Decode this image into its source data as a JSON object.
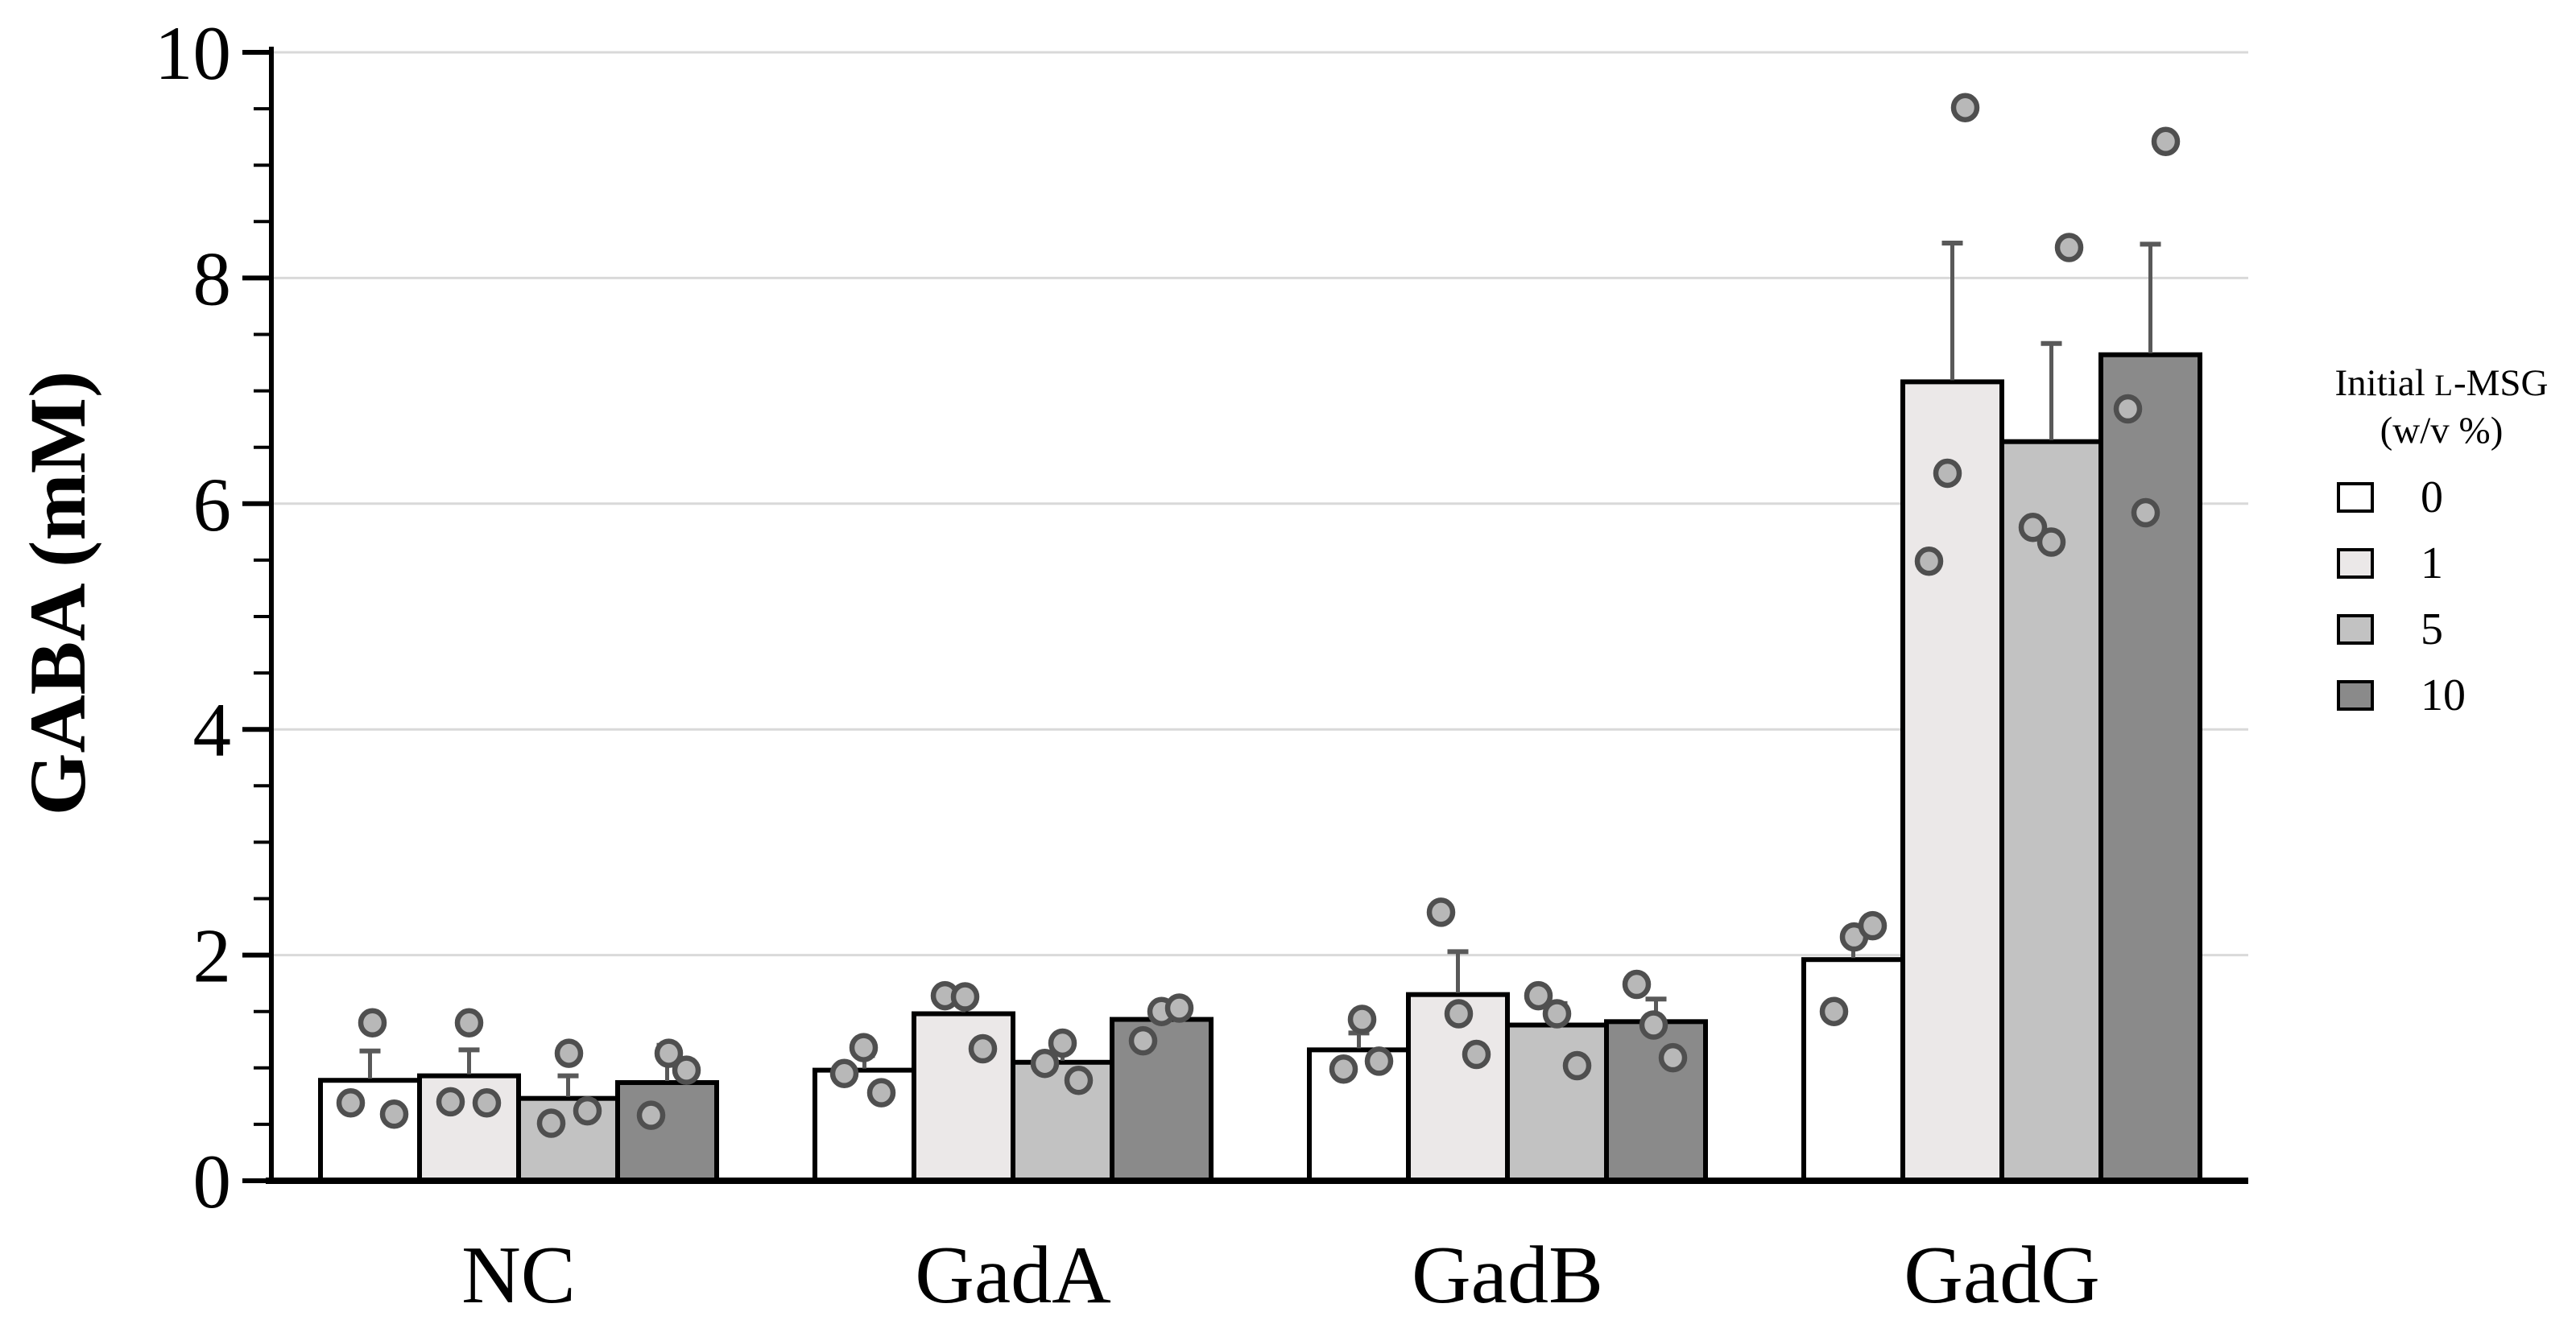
{
  "page": {
    "background": "#ffffff"
  },
  "chart_data": {
    "type": "bar",
    "title": "",
    "xlabel": "",
    "ylabel": "GABA (mM)",
    "ylim": [
      0,
      10
    ],
    "yticks": [
      0,
      2,
      4,
      6,
      8,
      10
    ],
    "minor_tick_step": 0.5,
    "grid": "horizontal-major-only",
    "gridline_color": "#d9d9d9",
    "axis_color": "#000000",
    "error_color": "#595959",
    "point_style": {
      "fill": "#b8b8b8",
      "stroke": "#4f4f4f"
    },
    "categories": [
      "NC",
      "GadA",
      "GadB",
      "GadG"
    ],
    "legend": {
      "title_pre": "Initial ",
      "title_smallcap": "L",
      "title_post": "-MSG",
      "subtitle": "(w/v %)",
      "position": "right"
    },
    "series": [
      {
        "name": "0",
        "fill": "#ffffff",
        "values": [
          0.89,
          0.98,
          1.16,
          1.96
        ],
        "errors_up": [
          0.26,
          0.13,
          0.15,
          0.26
        ],
        "points": [
          [
            [
              1.4,
              3
            ],
            [
              0.69,
              -24
            ],
            [
              0.59,
              30
            ]
          ],
          [
            [
              1.18,
              -1
            ],
            [
              0.95,
              -25
            ],
            [
              0.78,
              21
            ]
          ],
          [
            [
              1.43,
              4
            ],
            [
              0.99,
              -19
            ],
            [
              1.06,
              25
            ]
          ],
          [
            [
              2.16,
              1
            ],
            [
              2.26,
              24
            ],
            [
              1.5,
              -24
            ]
          ]
        ]
      },
      {
        "name": "1",
        "fill": "#ebe8e8",
        "values": [
          0.93,
          1.48,
          1.65,
          7.08
        ],
        "errors_up": [
          0.23,
          0.16,
          0.38,
          1.23
        ],
        "points": [
          [
            [
              1.4,
              0
            ],
            [
              0.7,
              -23
            ],
            [
              0.69,
              22
            ]
          ],
          [
            [
              1.64,
              -23
            ],
            [
              1.63,
              2
            ],
            [
              1.17,
              24
            ]
          ],
          [
            [
              2.38,
              -21
            ],
            [
              1.48,
              1
            ],
            [
              1.12,
              23
            ]
          ],
          [
            [
              9.51,
              16
            ],
            [
              6.27,
              -6
            ],
            [
              5.49,
              -29
            ]
          ]
        ]
      },
      {
        "name": "5",
        "fill": "#c2c2c2",
        "values": [
          0.73,
          1.05,
          1.38,
          6.55
        ],
        "errors_up": [
          0.2,
          0.2,
          0.19,
          0.87
        ],
        "points": [
          [
            [
              1.13,
              1
            ],
            [
              0.62,
              24
            ],
            [
              0.51,
              -21
            ]
          ],
          [
            [
              1.22,
              0
            ],
            [
              1.04,
              -22
            ],
            [
              0.89,
              20
            ]
          ],
          [
            [
              1.64,
              -23
            ],
            [
              1.48,
              0
            ],
            [
              1.02,
              25
            ]
          ],
          [
            [
              8.27,
              22
            ],
            [
              5.79,
              -23
            ],
            [
              5.66,
              0
            ]
          ]
        ]
      },
      {
        "name": "10",
        "fill": "#8a8a8a",
        "values": [
          0.87,
          1.43,
          1.41,
          7.32
        ],
        "errors_up": [
          0.33,
          0.08,
          0.2,
          0.98
        ],
        "points": [
          [
            [
              1.13,
              2
            ],
            [
              0.98,
              24
            ],
            [
              0.58,
              -20
            ]
          ],
          [
            [
              1.5,
              0
            ],
            [
              1.53,
              22
            ],
            [
              1.24,
              -23
            ]
          ],
          [
            [
              1.74,
              -24
            ],
            [
              1.38,
              -3
            ],
            [
              1.09,
              21
            ]
          ],
          [
            [
              9.21,
              19
            ],
            [
              6.84,
              -28
            ],
            [
              5.92,
              -6
            ]
          ]
        ]
      }
    ]
  }
}
